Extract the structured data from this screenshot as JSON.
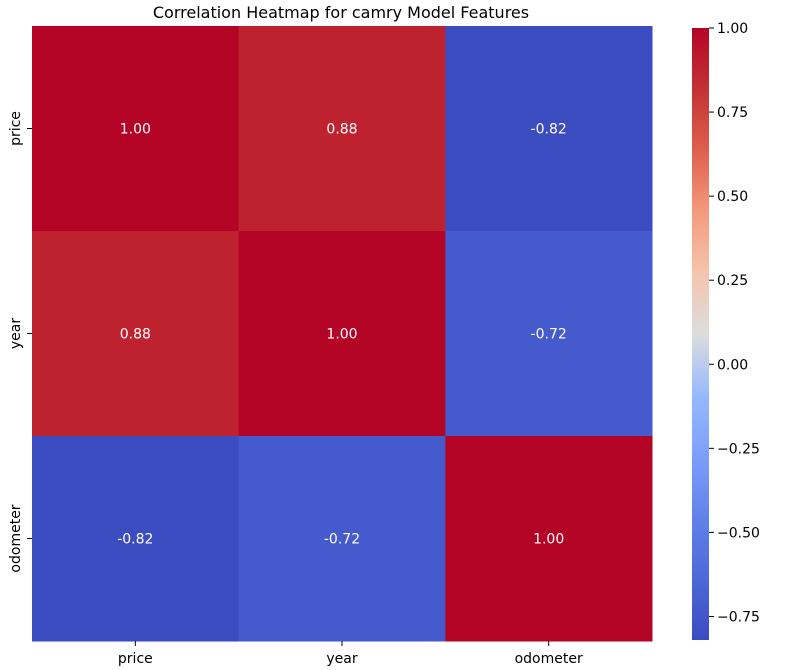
{
  "chart_data": {
    "type": "heatmap",
    "title": "Correlation Heatmap for camry Model Features",
    "xlabel": "",
    "ylabel": "",
    "x_labels": [
      "price",
      "year",
      "odometer"
    ],
    "y_labels": [
      "price",
      "year",
      "odometer"
    ],
    "values": [
      [
        1.0,
        0.88,
        -0.82
      ],
      [
        0.88,
        1.0,
        -0.72
      ],
      [
        -0.82,
        -0.72,
        1.0
      ]
    ],
    "annotations": [
      [
        "1.00",
        "0.88",
        "-0.82"
      ],
      [
        "0.88",
        "1.00",
        "-0.72"
      ],
      [
        "-0.82",
        "-0.72",
        "1.00"
      ]
    ],
    "colormap": "coolwarm",
    "vmin": -0.82,
    "vmax": 1.0,
    "colorbar": {
      "ticks": [
        1.0,
        0.75,
        0.5,
        0.25,
        0.0,
        -0.25,
        -0.5,
        -0.75
      ],
      "tick_labels": [
        "1.00",
        "0.75",
        "0.50",
        "0.25",
        "0.00",
        "−0.25",
        "−0.50",
        "−0.75"
      ],
      "placement": "right"
    },
    "grid": false,
    "legend": "none"
  }
}
